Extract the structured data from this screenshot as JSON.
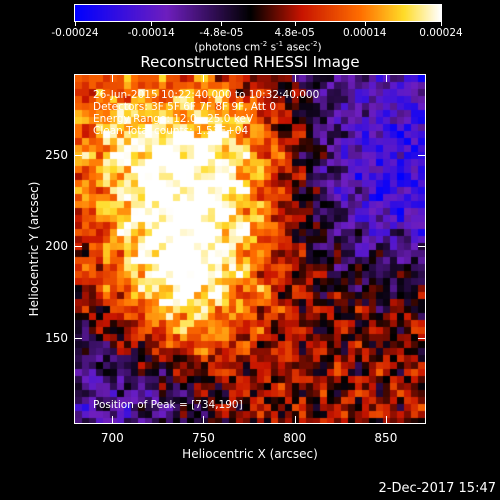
{
  "colorbar": {
    "tick_labels": [
      "-0.00024",
      "-0.00014",
      "-4.8e-05",
      "4.8e-05",
      "0.00014",
      "0.00024"
    ],
    "units_base": "(photons cm",
    "units_exp1": "-2",
    "units_mid": " s",
    "units_exp2": "-1",
    "units_mid2": " asec",
    "units_exp3": "-2",
    "units_end": ")"
  },
  "title": "Reconstructed RHESSI Image",
  "annotations": {
    "line1": "26-Jun-2015 10:22:40.000 to 10:32:40.000",
    "line2": "Detectors: 3F 5F 6F 7F 8F 9F, Att 0",
    "line3": "Energy Range: 12.0 - 25.0 keV",
    "line4": "Clean    Total counts: 1.53E+04",
    "peak": "Position of Peak = [734,190]"
  },
  "timestamp": "2-Dec-2017 15:47",
  "chart_data": {
    "type": "heatmap",
    "title": "Reconstructed RHESSI Image",
    "xlabel": "Heliocentric X (arcsec)",
    "ylabel": "Heliocentric Y (arcsec)",
    "xlim": [
      679,
      872
    ],
    "ylim": [
      103,
      294
    ],
    "xticks": [
      700,
      750,
      800,
      850
    ],
    "yticks": [
      150,
      200,
      250
    ],
    "colorbar_range": [
      -0.00024,
      0.00024
    ],
    "colormap": "blue-purple-black-red-orange-yellow-white",
    "peak_position": [
      734,
      190
    ],
    "bright_regions": [
      {
        "x": 745,
        "y": 200,
        "level": "high"
      },
      {
        "x": 760,
        "y": 250,
        "level": "high"
      },
      {
        "x": 710,
        "y": 255,
        "level": "high"
      },
      {
        "x": 734,
        "y": 170,
        "level": "high"
      }
    ],
    "dim_regions": [
      {
        "x": 850,
        "y": 230,
        "level": "negative"
      },
      {
        "x": 700,
        "y": 115,
        "level": "negative"
      }
    ]
  }
}
